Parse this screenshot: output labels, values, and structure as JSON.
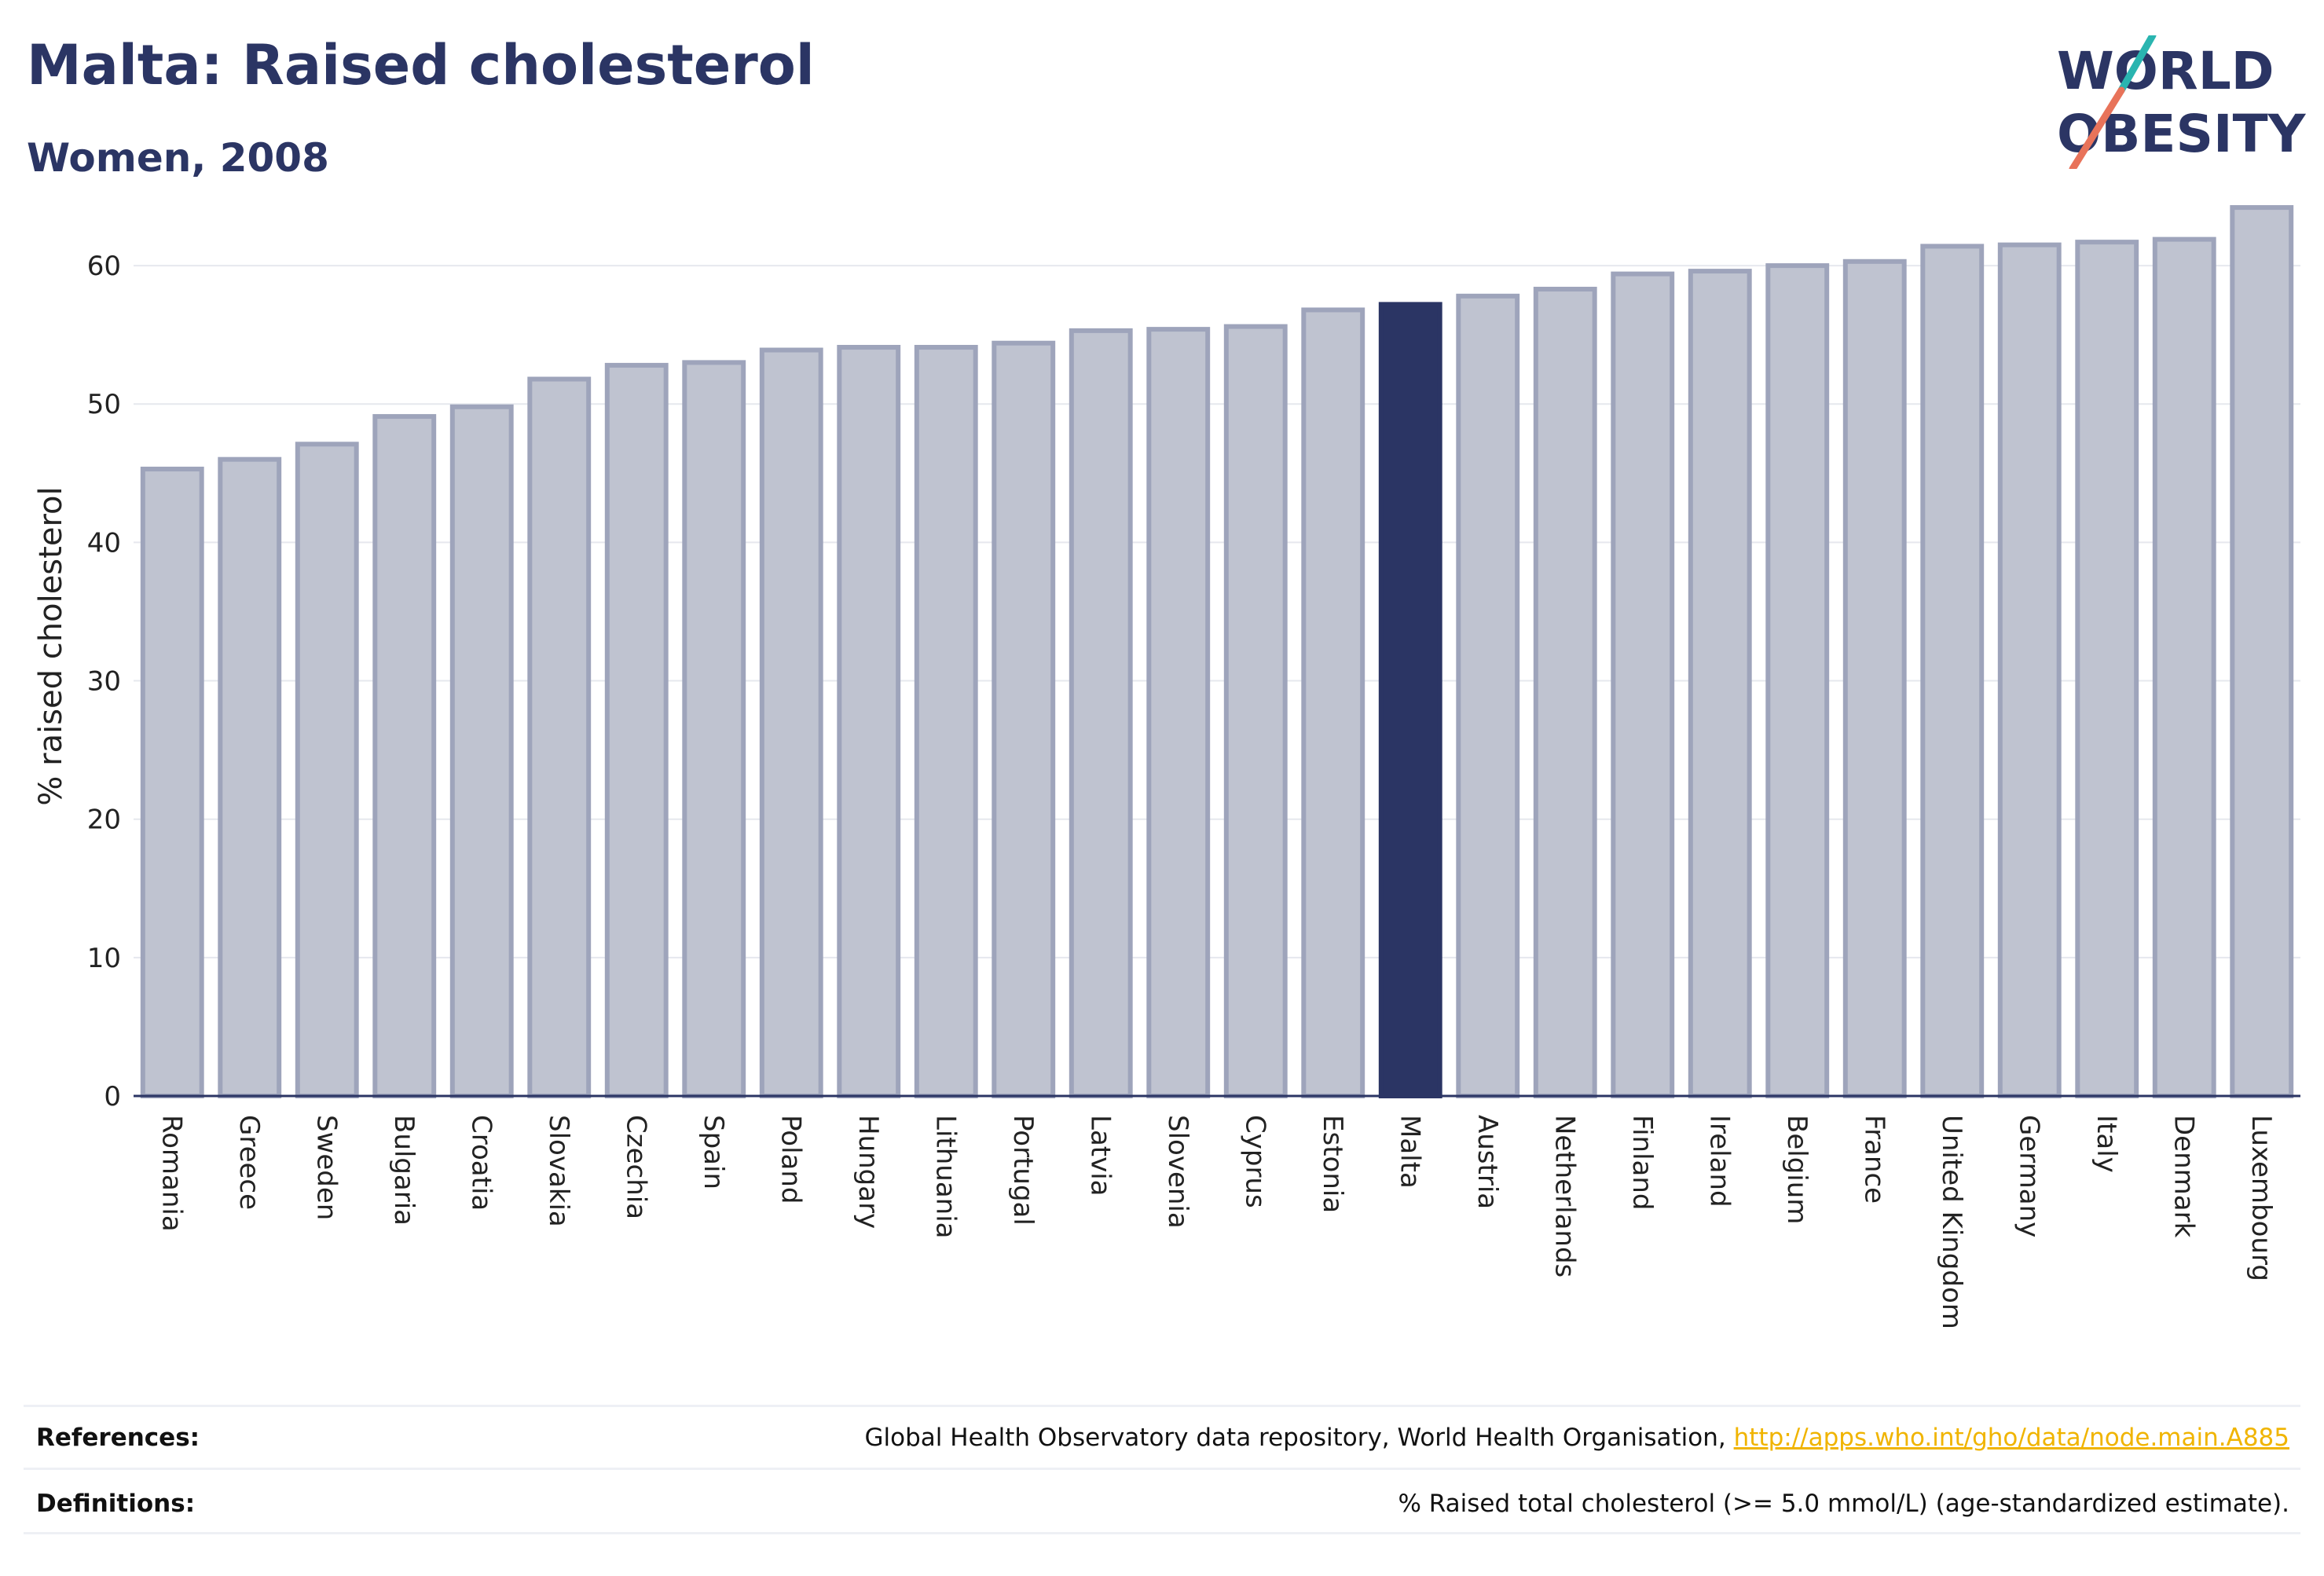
{
  "header": {
    "title": "Malta: Raised cholesterol",
    "subtitle": "Women, 2008"
  },
  "logo": {
    "line1": "WORLD",
    "line2": "OBESITY",
    "colors": {
      "text": "#2b3564",
      "slash_teal": "#2ab5b0",
      "slash_coral": "#e8735a"
    }
  },
  "chart_data": {
    "type": "bar",
    "ylabel": "% raised cholesterol",
    "xlabel": "",
    "ylim": [
      0,
      65
    ],
    "yticks": [
      0,
      10,
      20,
      30,
      40,
      50,
      60
    ],
    "grid": true,
    "highlight": "Malta",
    "colors": {
      "bar": "#bfc3d0",
      "bar_edge": "#9ea4bb",
      "highlight": "#2b3564",
      "grid": "#e6e8ee",
      "axis": "#2b3564"
    },
    "categories": [
      "Romania",
      "Greece",
      "Sweden",
      "Bulgaria",
      "Croatia",
      "Slovakia",
      "Czechia",
      "Spain",
      "Poland",
      "Hungary",
      "Lithuania",
      "Portugal",
      "Latvia",
      "Slovenia",
      "Cyprus",
      "Estonia",
      "Malta",
      "Austria",
      "Netherlands",
      "Finland",
      "Ireland",
      "Belgium",
      "France",
      "United Kingdom",
      "Germany",
      "Italy",
      "Denmark",
      "Luxembourg"
    ],
    "values": [
      45.3,
      46.0,
      47.1,
      49.1,
      49.8,
      51.8,
      52.8,
      53.0,
      53.9,
      54.1,
      54.1,
      54.4,
      55.3,
      55.4,
      55.6,
      56.8,
      57.2,
      57.8,
      58.3,
      59.4,
      59.6,
      60.0,
      60.3,
      61.4,
      61.5,
      61.7,
      61.9,
      64.2
    ]
  },
  "footer": {
    "references_label": "References:",
    "references_text": "Global Health Observatory data repository, World Health Organisation, ",
    "references_link": "http://apps.who.int/gho/data/node.main.A885",
    "definitions_label": "Definitions:",
    "definitions_text": "% Raised total cholesterol (>= 5.0 mmol/L) (age-standardized estimate)."
  }
}
